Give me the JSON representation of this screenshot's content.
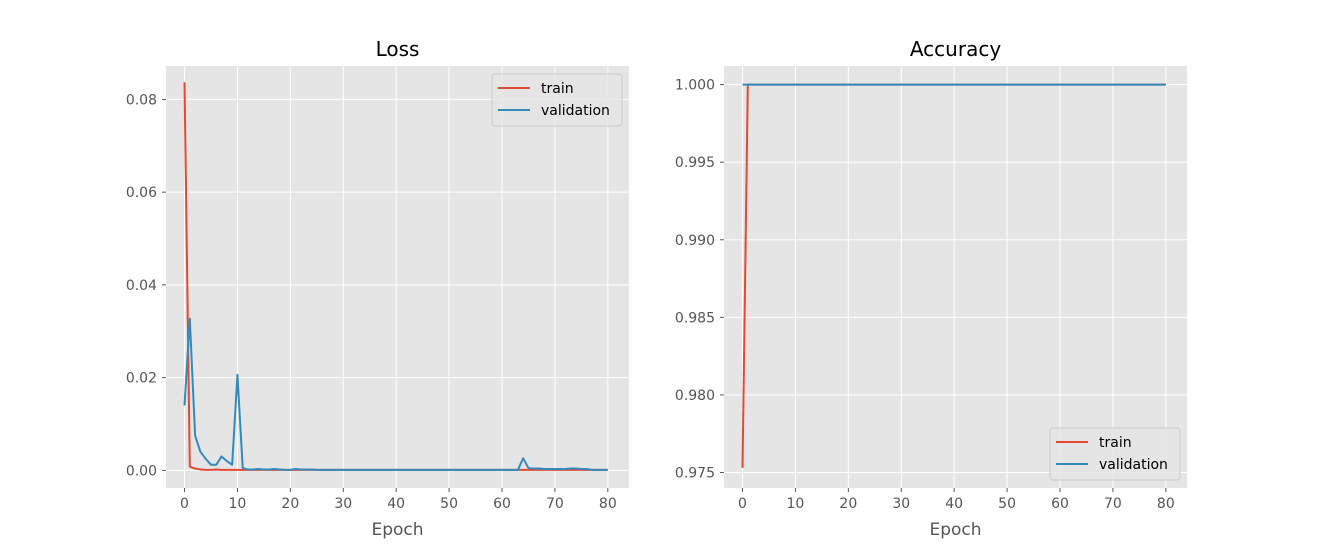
{
  "chart_data": [
    {
      "type": "line",
      "title": "Loss",
      "xlabel": "Epoch",
      "ylabel": "",
      "xlim": [
        -3.5,
        84
      ],
      "ylim": [
        -0.0038,
        0.0872
      ],
      "xticks": [
        0,
        10,
        20,
        30,
        40,
        50,
        60,
        70,
        80
      ],
      "yticks": [
        0.0,
        0.02,
        0.04,
        0.06,
        0.08
      ],
      "ytick_labels": [
        "0.00",
        "0.02",
        "0.04",
        "0.06",
        "0.08"
      ],
      "grid": true,
      "legend_position": "top-right",
      "series": [
        {
          "name": "train",
          "color": "#E24A33",
          "x": [
            0,
            1,
            2,
            3,
            4,
            5,
            6,
            7,
            8,
            9,
            10,
            11,
            12,
            14,
            16,
            18,
            20,
            25,
            30,
            40,
            50,
            60,
            70,
            80
          ],
          "y": [
            0.0837,
            0.0008,
            0.0004,
            0.0002,
            0.0001,
            0.0001,
            0.0002,
            0.0001,
            0.0001,
            0.0001,
            0.0001,
            0.0001,
            0.0001,
            0.0001,
            0.0001,
            0.0001,
            0.0001,
            0.0001,
            0.0001,
            0.0001,
            0.0001,
            0.0001,
            0.0001,
            0.0001
          ]
        },
        {
          "name": "validation",
          "color": "#348ABD",
          "x": [
            0,
            1,
            2,
            3,
            4,
            5,
            6,
            7,
            8,
            9,
            10,
            11,
            12,
            13,
            14,
            15,
            16,
            17,
            18,
            19,
            20,
            21,
            22,
            23,
            24,
            25,
            26,
            27,
            28,
            29,
            30,
            31,
            32,
            33,
            34,
            35,
            36,
            37,
            38,
            39,
            40,
            45,
            50,
            55,
            60,
            63,
            64,
            65,
            66,
            67,
            68,
            69,
            70,
            71,
            72,
            73,
            74,
            75,
            76,
            77,
            78,
            79,
            80
          ],
          "y": [
            0.014,
            0.0327,
            0.0075,
            0.004,
            0.0025,
            0.0012,
            0.0012,
            0.003,
            0.002,
            0.0012,
            0.0206,
            0.0005,
            0.0002,
            0.0002,
            0.0003,
            0.0002,
            0.0002,
            0.0003,
            0.0002,
            0.0001,
            0.0001,
            0.0003,
            0.0002,
            0.0002,
            0.0002,
            0.0001,
            0.0001,
            0.0001,
            0.0001,
            0.0001,
            0.0001,
            0.0001,
            0.0001,
            0.0001,
            0.0001,
            0.0001,
            0.0001,
            0.0001,
            0.0001,
            0.0001,
            0.0001,
            0.0001,
            0.0001,
            0.0001,
            0.0001,
            0.0001,
            0.0026,
            0.0005,
            0.0004,
            0.0004,
            0.0003,
            0.0003,
            0.0003,
            0.0003,
            0.0003,
            0.0004,
            0.0004,
            0.0003,
            0.0003,
            0.0001,
            0.0001,
            0.0001,
            0.0001
          ]
        }
      ]
    },
    {
      "type": "line",
      "title": "Accuracy",
      "xlabel": "Epoch",
      "ylabel": "",
      "xlim": [
        -3.5,
        84
      ],
      "ylim": [
        0.974,
        1.0012
      ],
      "xticks": [
        0,
        10,
        20,
        30,
        40,
        50,
        60,
        70,
        80
      ],
      "yticks": [
        0.975,
        0.98,
        0.985,
        0.99,
        0.995,
        1.0
      ],
      "ytick_labels": [
        "0.975",
        "0.980",
        "0.985",
        "0.990",
        "0.995",
        "1.000"
      ],
      "grid": true,
      "legend_position": "bottom-right",
      "series": [
        {
          "name": "train",
          "color": "#E24A33",
          "x": [
            0,
            1,
            2,
            80
          ],
          "y": [
            0.9753,
            1.0,
            1.0,
            1.0
          ]
        },
        {
          "name": "validation",
          "color": "#348ABD",
          "x": [
            0,
            1,
            80
          ],
          "y": [
            1.0,
            1.0,
            1.0
          ]
        }
      ]
    }
  ]
}
